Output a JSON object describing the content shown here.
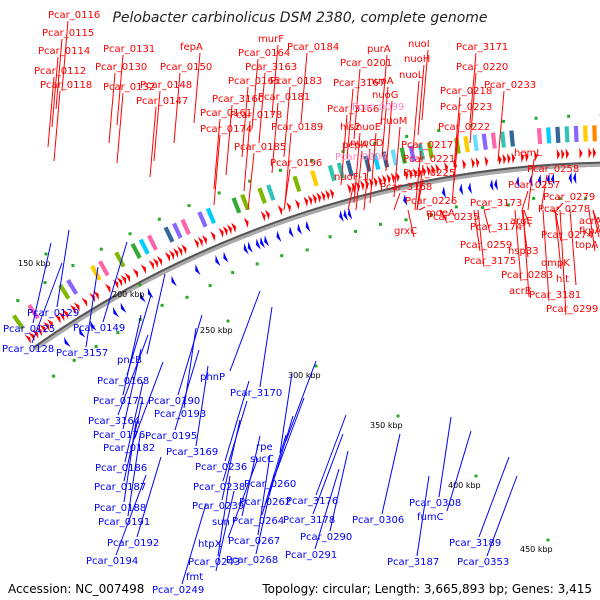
{
  "title": "Pelobacter carbinolicus DSM 2380, complete genome",
  "footer": {
    "accession": "Accession: NC_007498",
    "summary": "Topology: circular; Length: 3,665,893 bp; Genes: 3,415"
  },
  "kbp_ticks": [
    "150 kbp",
    "200 kbp",
    "250 kbp",
    "300 kbp",
    "350 kbp",
    "400 kbp",
    "450 kbp"
  ],
  "colors": {
    "forward": "#ff0000",
    "reverse": "#0000ff",
    "pink": "#ff88cc",
    "backbone": "#999999"
  },
  "forward_labels": [
    "Pcar_0116",
    "Pcar_0115",
    "Pcar_0114",
    "Pcar_0112",
    "Pcar_0118",
    "Pcar_0131",
    "Pcar_0130",
    "Pcar_0132",
    "fepA",
    "Pcar_0150",
    "Pcar_0148",
    "Pcar_0147",
    "Pcar_0164",
    "murF",
    "Pcar_3163",
    "Pcar_0165",
    "Pcar_3160",
    "Pcar_0161",
    "Pcar_0174",
    "Pcar_0178",
    "Pcar_0185",
    "Pcar_0184",
    "Pcar_0183",
    "Pcar_0181",
    "Pcar_0189",
    "Pcar_0196",
    "purA",
    "nuoI",
    "Pcar_3171",
    "Pcar_0201",
    "nuoH",
    "Pcar_0220",
    "Pcar_3167",
    "nuoA",
    "nuoL",
    "Pcar_0233",
    "nuoG",
    "Pcar_0218",
    "Pcar_3166",
    "his2",
    "nuoE",
    "Pcar_0223",
    "nuoM",
    "Pcar_0222",
    "pepA",
    "nuoCD",
    "Pcar_0217",
    "nuoF-1",
    "Pcar_0221",
    "Pcar_0225",
    "Pcar_3168",
    "hemL",
    "Pcar_0258",
    "Pcar_0257",
    "Pcar_0226",
    "Pcar_3173",
    "Pcar_0235",
    "moeA",
    "grxC",
    "Pcar_0279",
    "Pcar_0278",
    "argE",
    "acrA",
    "Pcar_3174",
    "Pcar_0274",
    "fkpA",
    "Pcar_0259",
    "hsp33",
    "topA",
    "Pcar_3175",
    "ompK",
    "Pcar_0283",
    "hit",
    "acrB",
    "Pcar_3181",
    "Pcar_0299"
  ],
  "pink_labels": [
    "Pcar_0099",
    "Pcar_0204"
  ],
  "reverse_labels": [
    "Pcar_0129",
    "Pcar_0125",
    "Pcar_0149",
    "Pcar_0128",
    "Pcar_3157",
    "pncB",
    "Pcar_0168",
    "phnP",
    "Pcar_3170",
    "Pcar_0171",
    "Pcar_0190",
    "Pcar_3164",
    "Pcar_0193",
    "Pcar_0176",
    "Pcar_0195",
    "Pcar_0182",
    "Pcar_3169",
    "Pcar_0186",
    "Pcar_0236",
    "rpe",
    "sucC",
    "Pcar_0187",
    "Pcar_0238",
    "Pcar_0260",
    "Pcar_0188",
    "Pcar_0239",
    "Pcar_0262",
    "Pcar_3176",
    "Pcar_0191",
    "sun",
    "Pcar_0264",
    "Pcar_3178",
    "Pcar_0308",
    "Pcar_0306",
    "Pcar_0192",
    "htpX",
    "Pcar_0267",
    "Pcar_0290",
    "fumC",
    "Pcar_0194",
    "Pcar_0243",
    "Pcar_0268",
    "Pcar_0291",
    "Pcar_3189",
    "Pcar_3187",
    "fmt",
    "Pcar_0249",
    "Pcar_0353"
  ]
}
